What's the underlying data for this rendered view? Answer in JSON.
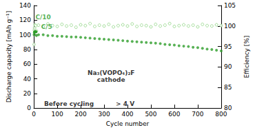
{
  "chart_data": {
    "type": "scatter",
    "x_label": "Cycle number",
    "y_label": "Discharge capacity [mAh g⁻¹]",
    "y2_label": "Efficiency [%]",
    "xlim": [
      0,
      800
    ],
    "xticks": [
      0,
      100,
      200,
      300,
      400,
      500,
      600,
      700,
      800
    ],
    "ylim": [
      0,
      140
    ],
    "yticks": [
      0,
      20,
      40,
      60,
      80,
      100,
      120,
      140
    ],
    "y2lim": [
      80,
      105
    ],
    "y2ticks": [
      80,
      85,
      90,
      95,
      100,
      105
    ],
    "grid": false,
    "series": [
      {
        "color": "#2e9e2a",
        "marker": "circle",
        "axis": "y",
        "x": [
          1,
          2,
          3,
          4,
          5,
          6,
          7,
          8,
          9,
          10,
          11,
          20,
          40,
          60,
          80,
          100,
          120,
          140,
          160,
          180,
          200,
          220,
          240,
          260,
          280,
          300,
          320,
          340,
          360,
          380,
          400,
          420,
          440,
          460,
          480,
          500,
          520,
          540,
          560,
          580,
          600,
          620,
          640,
          660,
          680,
          700,
          720,
          740,
          760,
          780,
          800
        ],
        "values": [
          100,
          103,
          104,
          104,
          104,
          104,
          104,
          104,
          104,
          104,
          99,
          100,
          100,
          99,
          99,
          98,
          98,
          97.5,
          97,
          97,
          96.5,
          96,
          95.5,
          95,
          94.5,
          94,
          93.5,
          93,
          92.5,
          92,
          91.5,
          91,
          90.5,
          90,
          89.5,
          89,
          88.5,
          88,
          87,
          86.5,
          86,
          85,
          84.5,
          84,
          83,
          82.5,
          81.5,
          80.5,
          80,
          79,
          78
        ]
      },
      {
        "color": "#8fd483",
        "marker": "open_circle",
        "axis": "y2",
        "x": [
          1,
          2,
          3,
          5,
          8,
          11,
          20,
          40,
          60,
          80,
          100,
          120,
          140,
          160,
          180,
          200,
          220,
          240,
          260,
          280,
          300,
          320,
          340,
          360,
          380,
          400,
          420,
          440,
          460,
          480,
          500,
          520,
          540,
          560,
          580,
          600,
          620,
          640,
          660,
          680,
          700,
          720,
          740,
          760,
          780,
          800
        ],
        "values": [
          95.5,
          99,
          99.5,
          100.3,
          100.1,
          98.8,
          100.2,
          99.8,
          100.5,
          100.1,
          99.9,
          100.4,
          100,
          100.2,
          99.7,
          100.3,
          100.1,
          100.6,
          99.9,
          100.2,
          100,
          100.4,
          99.8,
          100.1,
          100.3,
          100,
          100.5,
          99.9,
          100.2,
          100.1,
          99.8,
          100.4,
          100,
          100.2,
          100.6,
          99.9,
          100.1,
          100.3,
          100,
          100.2,
          99.8,
          100.4,
          100.1,
          100,
          100.3,
          100.1
        ]
      }
    ],
    "annotations": [
      {
        "text": "C/10",
        "x": 40,
        "y": 124,
        "color": "#2e9e2a"
      },
      {
        "text": "C/5",
        "x": 55,
        "y": 111,
        "color": "#2e9e2a"
      },
      {
        "text": "Na₃(VOPO₄)₂F",
        "x": 330,
        "y": 48
      },
      {
        "text": "cathode",
        "x": 330,
        "y": 39
      },
      {
        "text": "Before cycling",
        "x": 150,
        "y": 6
      },
      {
        "text": "> 4 V",
        "x": 390,
        "y": 6
      }
    ]
  }
}
